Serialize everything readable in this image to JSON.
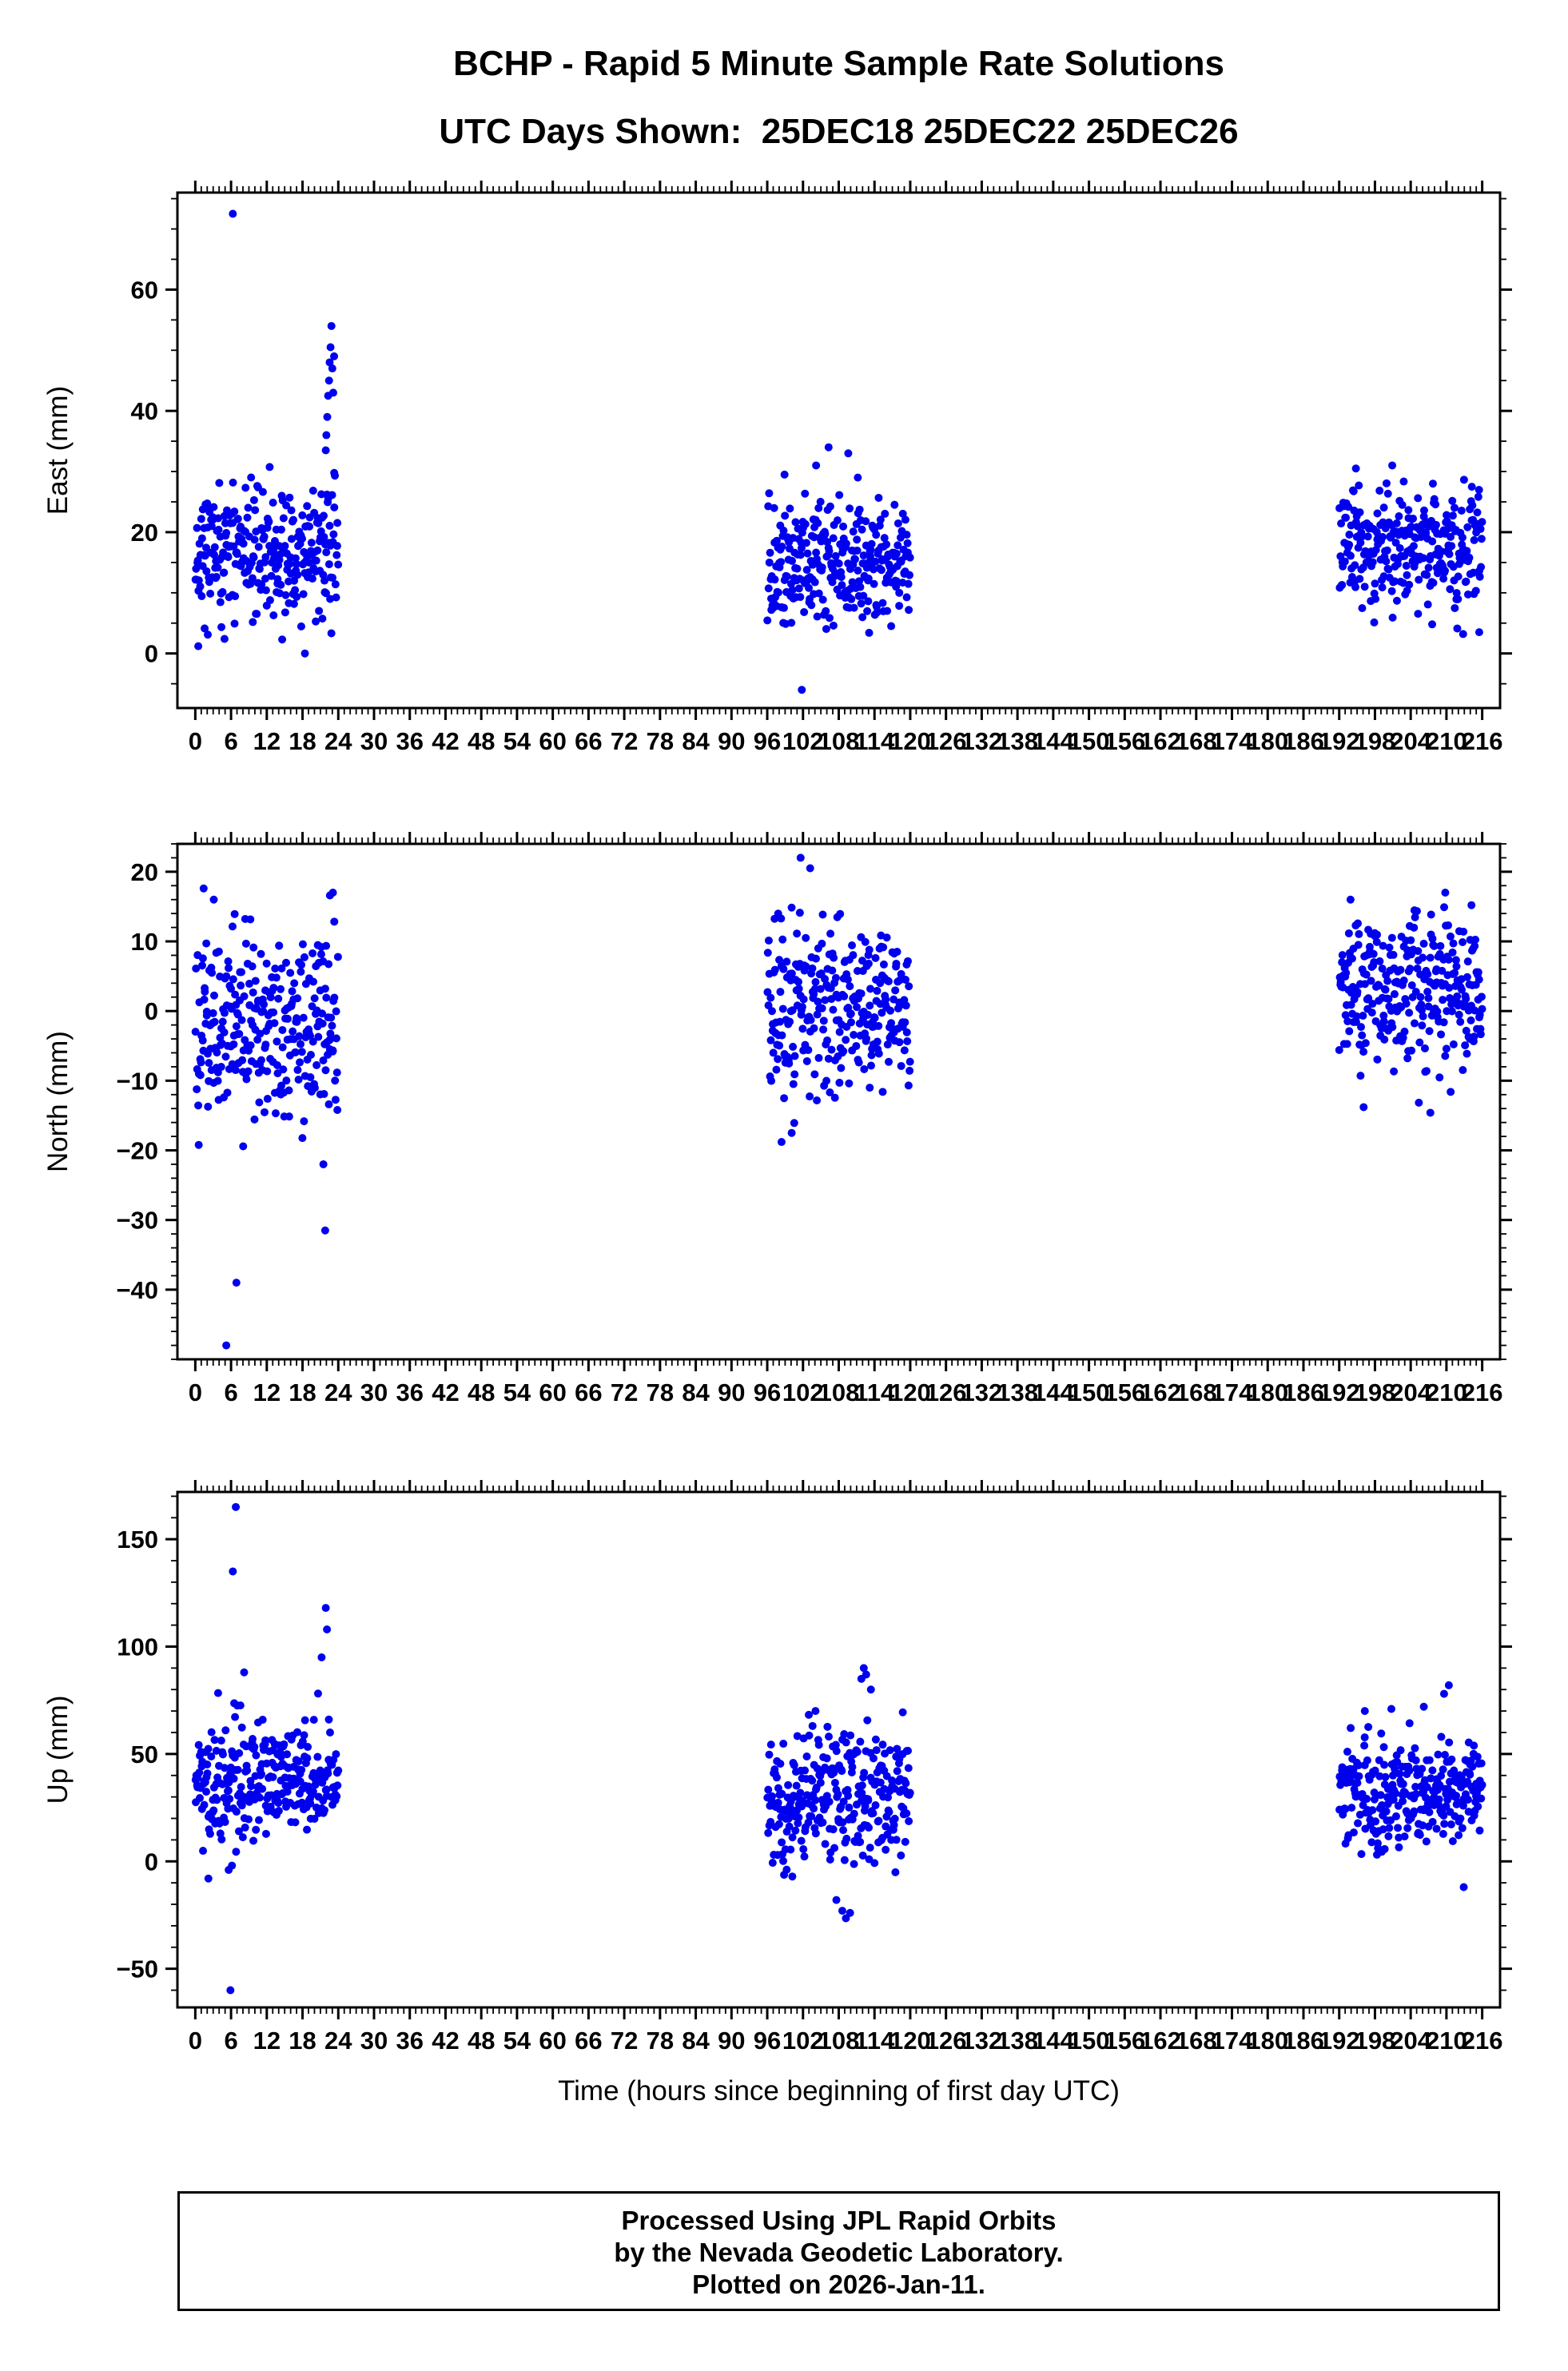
{
  "page": {
    "title": "BCHP - Rapid 5 Minute Sample Rate Solutions",
    "subtitle": "UTC Days Shown:  25DEC18 25DEC22 25DEC26",
    "footer": {
      "lines": [
        "Processed Using JPL Rapid Orbits",
        "by the Nevada Geodetic Laboratory.",
        "Plotted on 2026-Jan-11."
      ]
    }
  },
  "chart_data": {
    "type": "scatter",
    "title": "BCHP - Rapid 5 Minute Sample Rate Solutions",
    "subtitle": "UTC Days Shown:  25DEC18 25DEC22 25DEC26",
    "station": "BCHP",
    "days_shown": [
      "25DEC18",
      "25DEC22",
      "25DEC26"
    ],
    "xlabel": "Time (hours since beginning of first day UTC)",
    "xlim": [
      -3,
      219
    ],
    "x_major_tick_step": 6,
    "x_minor_tick_step": 1,
    "x_tick_labels": [
      0,
      6,
      12,
      18,
      24,
      30,
      36,
      42,
      48,
      54,
      60,
      66,
      72,
      78,
      84,
      90,
      96,
      102,
      108,
      114,
      120,
      126,
      132,
      138,
      144,
      150,
      156,
      162,
      168,
      174,
      180,
      186,
      192,
      198,
      204,
      210,
      216
    ],
    "grid": false,
    "legend": "none",
    "marker": {
      "color": "#0000ee",
      "radius_px": 5
    },
    "panels": [
      {
        "name": "east",
        "ylabel": "East (mm)",
        "ylim": [
          -9,
          76
        ],
        "yticks": [
          0,
          20,
          40,
          60
        ],
        "y_minor_tick_step": 5,
        "clusters": [
          {
            "x_range": [
              0,
              24
            ],
            "n": 285,
            "mean": 17,
            "sd": 5.5,
            "y_min": 1,
            "y_max": 31,
            "seed": 11
          },
          {
            "x_range": [
              96,
              120
            ],
            "n": 285,
            "mean": 15,
            "sd": 4.8,
            "y_min": 3,
            "y_max": 28,
            "seed": 12
          },
          {
            "x_range": [
              192,
              216
            ],
            "n": 285,
            "mean": 17.5,
            "sd": 5.0,
            "y_min": 4,
            "y_max": 30,
            "seed": 13
          }
        ],
        "outliers": [
          [
            6.3,
            72.5
          ],
          [
            21.9,
            33.5
          ],
          [
            22.0,
            36
          ],
          [
            22.15,
            39
          ],
          [
            22.3,
            42.5
          ],
          [
            22.45,
            45
          ],
          [
            22.55,
            48
          ],
          [
            22.7,
            50.5
          ],
          [
            22.85,
            54
          ],
          [
            23.0,
            47
          ],
          [
            23.15,
            43
          ],
          [
            23.3,
            49
          ],
          [
            18.4,
            0
          ],
          [
            0.5,
            1.2
          ],
          [
            4.9,
            2.4
          ],
          [
            2.1,
            3.1
          ],
          [
            101.8,
            -6
          ],
          [
            104.2,
            31
          ],
          [
            106.3,
            34
          ],
          [
            109.6,
            33
          ],
          [
            111.2,
            29
          ],
          [
            116.8,
            4.5
          ],
          [
            113.1,
            3.4
          ],
          [
            98.9,
            29.5
          ],
          [
            194.8,
            30.5
          ],
          [
            200.9,
            31
          ],
          [
            212.8,
            3.2
          ],
          [
            207.6,
            4.8
          ],
          [
            215.5,
            3.5
          ]
        ]
      },
      {
        "name": "north",
        "ylabel": "North (mm)",
        "ylim": [
          -50,
          24
        ],
        "yticks": [
          -40,
          -30,
          -20,
          -10,
          0,
          10,
          20
        ],
        "y_minor_tick_step": 2,
        "clusters": [
          {
            "x_range": [
              0,
              24
            ],
            "n": 285,
            "mean": -1,
            "sd": 7.5,
            "y_min": -21,
            "y_max": 16,
            "seed": 21
          },
          {
            "x_range": [
              96,
              120
            ],
            "n": 285,
            "mean": 1,
            "sd": 6.5,
            "y_min": -17,
            "y_max": 15,
            "seed": 22
          },
          {
            "x_range": [
              192,
              216
            ],
            "n": 285,
            "mean": 3,
            "sd": 5.5,
            "y_min": -14,
            "y_max": 16,
            "seed": 23
          }
        ],
        "outliers": [
          [
            5.2,
            -48
          ],
          [
            6.9,
            -39
          ],
          [
            21.8,
            -31.5
          ],
          [
            21.5,
            -22
          ],
          [
            22.6,
            16.6
          ],
          [
            23.1,
            17
          ],
          [
            1.4,
            17.6
          ],
          [
            3.1,
            16
          ],
          [
            101.6,
            22
          ],
          [
            103.2,
            20.5
          ],
          [
            98.4,
            -18.8
          ],
          [
            100.1,
            -17.5
          ],
          [
            113.2,
            -11
          ],
          [
            196.1,
            -13.8
          ],
          [
            207.3,
            -14.6
          ],
          [
            193.9,
            16
          ],
          [
            209.8,
            17
          ],
          [
            214.2,
            15.2
          ]
        ]
      },
      {
        "name": "up",
        "ylabel": "Up (mm)",
        "ylim": [
          -68,
          172
        ],
        "yticks": [
          -50,
          0,
          50,
          100,
          150
        ],
        "y_minor_tick_step": 10,
        "clusters": [
          {
            "x_range": [
              0,
              24
            ],
            "n": 285,
            "mean": 38,
            "sd": 14,
            "y_min": -2,
            "y_max": 85,
            "seed": 31
          },
          {
            "x_range": [
              96,
              120
            ],
            "n": 285,
            "mean": 30,
            "sd": 16,
            "y_min": -8,
            "y_max": 72,
            "seed": 32
          },
          {
            "x_range": [
              192,
              216
            ],
            "n": 285,
            "mean": 32,
            "sd": 14,
            "y_min": 2,
            "y_max": 72,
            "seed": 33
          }
        ],
        "outliers": [
          [
            6.8,
            165
          ],
          [
            6.3,
            135
          ],
          [
            5.9,
            -60
          ],
          [
            21.9,
            118
          ],
          [
            22.1,
            108
          ],
          [
            21.2,
            95
          ],
          [
            8.2,
            88
          ],
          [
            2.2,
            -8
          ],
          [
            5.6,
            -4
          ],
          [
            107.6,
            -18
          ],
          [
            108.6,
            -23
          ],
          [
            109.2,
            -26.5
          ],
          [
            109.9,
            -24
          ],
          [
            111.8,
            85
          ],
          [
            112.2,
            90
          ],
          [
            112.6,
            87
          ],
          [
            113.4,
            80
          ],
          [
            104.1,
            70
          ],
          [
            212.9,
            -12
          ],
          [
            209.6,
            78
          ],
          [
            210.4,
            82
          ],
          [
            206.2,
            72
          ],
          [
            196.3,
            70
          ]
        ]
      }
    ]
  }
}
